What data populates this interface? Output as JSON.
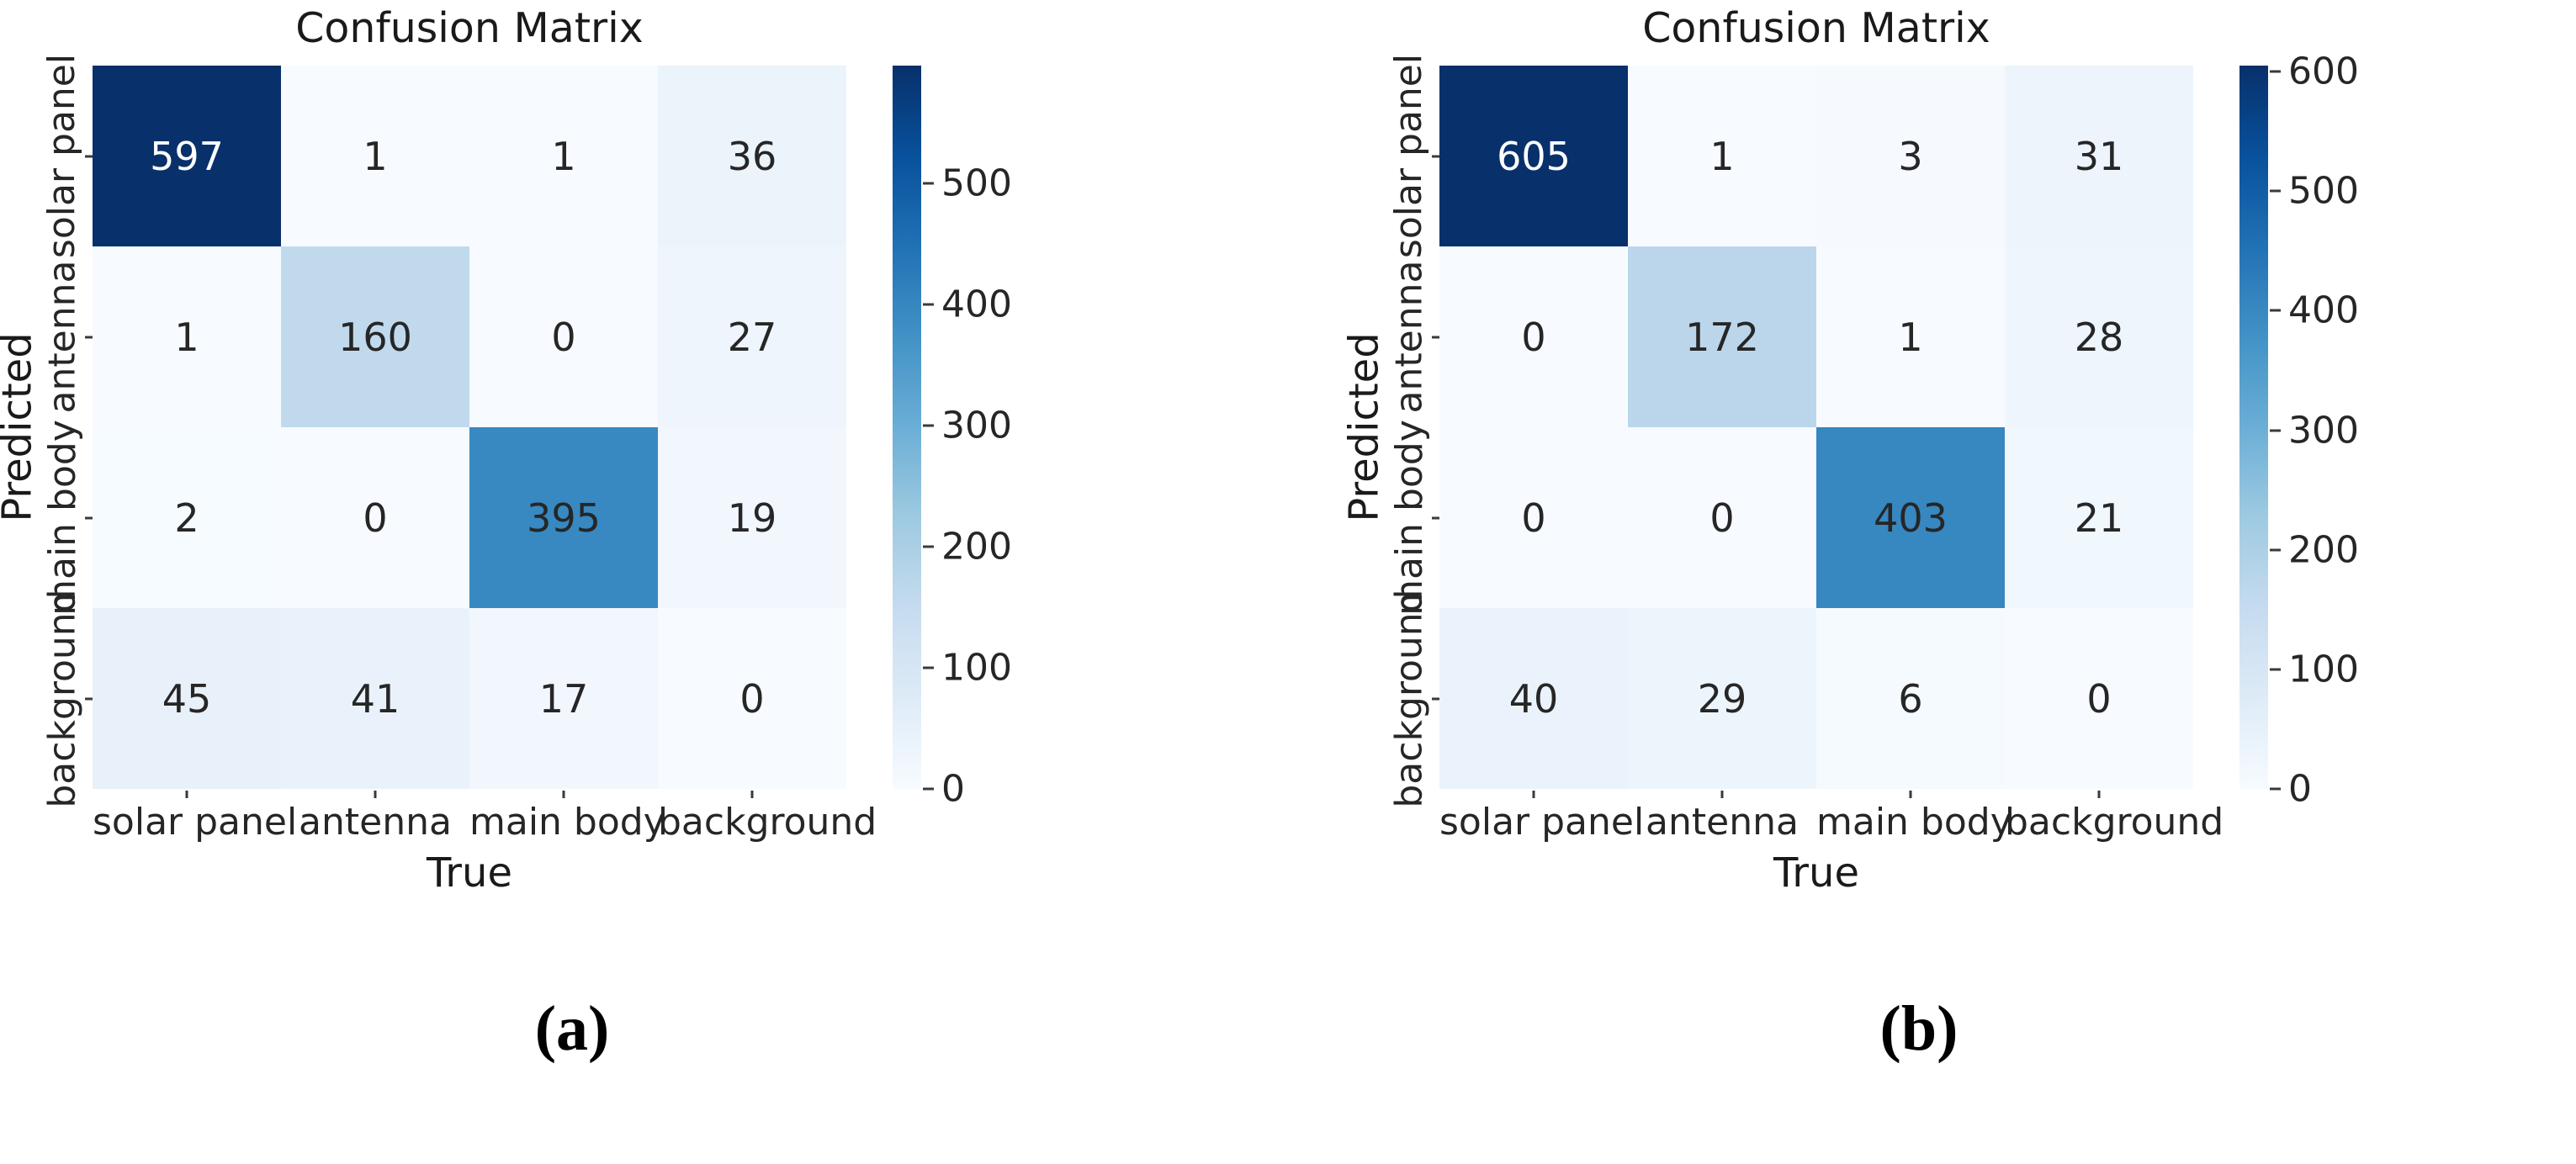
{
  "figure_caption_labels": [
    "(a)",
    "(b)"
  ],
  "colors": {
    "background": "#ffffff",
    "colormap_name": "Blues",
    "colormap_stops": [
      "#f7fbff",
      "#deebf7",
      "#c6dbef",
      "#9ecae1",
      "#6baed6",
      "#4292c6",
      "#2171b5",
      "#08519c",
      "#08306b"
    ],
    "annotation_dark": "#262626",
    "annotation_light": "#ffffff",
    "axis_text": "#262626"
  },
  "chart_data": [
    {
      "type": "heatmap",
      "title": "Confusion Matrix",
      "xlabel": "True",
      "ylabel": "Predicted",
      "x_categories": [
        "solar panel",
        "antenna",
        "main body",
        "background"
      ],
      "y_categories": [
        "solar panel",
        "antenna",
        "main body",
        "background"
      ],
      "values": [
        [
          597,
          1,
          1,
          36
        ],
        [
          1,
          160,
          0,
          27
        ],
        [
          2,
          0,
          395,
          19
        ],
        [
          45,
          41,
          17,
          0
        ]
      ],
      "vmin": 0,
      "vmax": 597,
      "colorbar_ticks": [
        500,
        400,
        300,
        200,
        100,
        0
      ],
      "legend_position": "right-colorbar",
      "grid": false,
      "caption": "(a)"
    },
    {
      "type": "heatmap",
      "title": "Confusion Matrix",
      "xlabel": "True",
      "ylabel": "Predicted",
      "x_categories": [
        "solar panel",
        "antenna",
        "main body",
        "background"
      ],
      "y_categories": [
        "solar panel",
        "antenna",
        "main body",
        "background"
      ],
      "values": [
        [
          605,
          1,
          3,
          31
        ],
        [
          0,
          172,
          1,
          28
        ],
        [
          0,
          0,
          403,
          21
        ],
        [
          40,
          29,
          6,
          0
        ]
      ],
      "vmin": 0,
      "vmax": 605,
      "colorbar_ticks": [
        600,
        500,
        400,
        300,
        200,
        100,
        0
      ],
      "legend_position": "right-colorbar",
      "grid": false,
      "caption": "(b)"
    }
  ]
}
